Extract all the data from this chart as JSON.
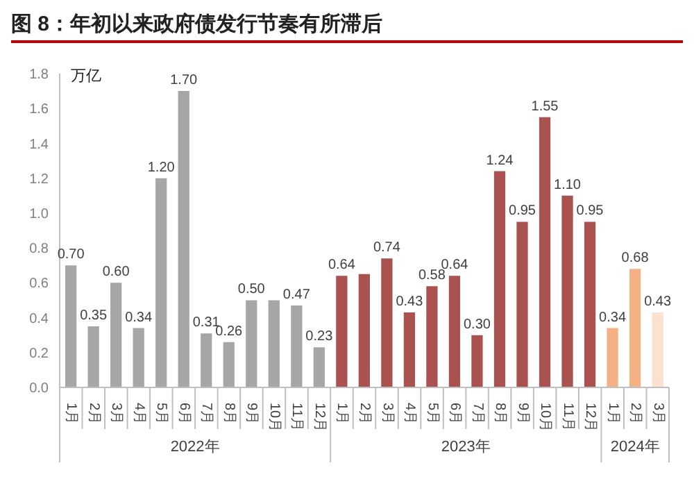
{
  "chart_data": {
    "type": "bar",
    "title": "图 8：年初以来政府债发行节奏有所滞后",
    "ylabel": "万亿",
    "categories": [
      "1月",
      "2月",
      "3月",
      "4月",
      "5月",
      "6月",
      "7月",
      "8月",
      "9月",
      "10月",
      "11月",
      "12月",
      "1月",
      "2月",
      "3月",
      "4月",
      "5月",
      "6月",
      "7月",
      "8月",
      "9月",
      "10月",
      "11月",
      "12月",
      "1月",
      "2月",
      "3月"
    ],
    "values": [
      0.7,
      0.35,
      0.6,
      0.34,
      1.2,
      1.7,
      0.31,
      0.26,
      0.5,
      0.5,
      0.47,
      0.23,
      0.64,
      0.65,
      0.74,
      0.43,
      0.58,
      0.64,
      0.3,
      1.24,
      0.95,
      1.55,
      1.1,
      0.95,
      0.34,
      0.68,
      0.43
    ],
    "value_labels": [
      "0.70",
      "0.35",
      "0.60",
      "0.34",
      "1.20",
      "1.70",
      "0.31",
      "0.26",
      "0.50",
      null,
      "0.47",
      "0.23",
      "0.64",
      null,
      "0.74",
      "0.43",
      "0.58",
      "0.64",
      "0.30",
      "1.24",
      "0.95",
      "1.55",
      "1.10",
      "0.95",
      "0.34",
      "0.68",
      "0.43"
    ],
    "colors": [
      "#a6a6a6",
      "#a6a6a6",
      "#a6a6a6",
      "#a6a6a6",
      "#a6a6a6",
      "#a6a6a6",
      "#a6a6a6",
      "#a6a6a6",
      "#a6a6a6",
      "#a6a6a6",
      "#a6a6a6",
      "#a6a6a6",
      "#a9524f",
      "#a9524f",
      "#a9524f",
      "#a9524f",
      "#a9524f",
      "#a9524f",
      "#a9524f",
      "#a9524f",
      "#a9524f",
      "#a9524f",
      "#a9524f",
      "#a9524f",
      "#f4b183",
      "#f4b183",
      "#fbe2d0"
    ],
    "ylim": [
      0,
      1.8
    ],
    "yticks": [
      {
        "value": 0,
        "label": "0.0"
      },
      {
        "value": 0.2,
        "label": "0.2"
      },
      {
        "value": 0.4,
        "label": "0.4"
      },
      {
        "value": 0.6,
        "label": "0.6"
      },
      {
        "value": 0.8,
        "label": "0.8"
      },
      {
        "value": 1.0,
        "label": "1.0"
      },
      {
        "value": 1.2,
        "label": "1.2"
      },
      {
        "value": 1.4,
        "label": "1.4"
      },
      {
        "value": 1.6,
        "label": "1.6"
      },
      {
        "value": 1.8,
        "label": "1.8"
      }
    ],
    "annotations": [
      "2022年",
      "2023年",
      "2024年"
    ],
    "grid": false,
    "legend": false
  }
}
